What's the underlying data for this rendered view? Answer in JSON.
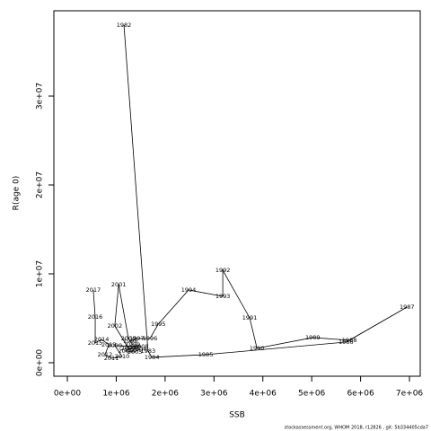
{
  "chart_data": {
    "type": "line",
    "xlabel": "SSB",
    "ylabel": "R(age 0)",
    "footnote": "stockassessment.org, WHOM 2018, r12826 , git: 5b334405cda7",
    "line_color": "#000000",
    "label_color": "#ff0000",
    "labels": [
      "1982",
      "1983",
      "1984",
      "1985",
      "1986",
      "1987",
      "1988",
      "1989",
      "1990",
      "1991",
      "1992",
      "1993",
      "1994",
      "1995",
      "1996",
      "1997",
      "1998",
      "1999",
      "2000",
      "2001",
      "2002",
      "2003",
      "2004",
      "2005",
      "2006",
      "2007",
      "2008",
      "2009",
      "2010",
      "2011",
      "2012",
      "2013",
      "2014",
      "2015",
      "2016",
      "2017"
    ],
    "x": [
      1158000,
      1650000,
      1730000,
      2830000,
      5700000,
      6950000,
      5770000,
      5020000,
      3880000,
      3730000,
      3180000,
      3180000,
      2480000,
      1860000,
      1690000,
      1420000,
      1290000,
      1340000,
      1250000,
      1050000,
      970000,
      1250000,
      1470000,
      1380000,
      1190000,
      1320000,
      1510000,
      970000,
      1120000,
      900000,
      770000,
      850000,
      700000,
      570000,
      570000,
      530000
    ],
    "values": [
      37980000,
      1310000,
      610000,
      910000,
      2320000,
      6260000,
      2530000,
      2830000,
      1620000,
      5050000,
      10400000,
      7470000,
      8180000,
      4340000,
      2730000,
      2730000,
      2420000,
      2020000,
      2730000,
      8790000,
      4140000,
      1620000,
      1520000,
      1210000,
      1310000,
      1720000,
      1820000,
      1920000,
      710000,
      510000,
      910000,
      2020000,
      2630000,
      2220000,
      5150000,
      8180000
    ],
    "xlim": [
      -276000,
      7220000
    ],
    "ylim": [
      -1520000,
      39600000
    ],
    "xticks": [
      {
        "value": 0,
        "label": "0e+00"
      },
      {
        "value": 1000000,
        "label": "1e+06"
      },
      {
        "value": 2000000,
        "label": "2e+06"
      },
      {
        "value": 3000000,
        "label": "3e+06"
      },
      {
        "value": 4000000,
        "label": "4e+06"
      },
      {
        "value": 5000000,
        "label": "5e+06"
      },
      {
        "value": 6000000,
        "label": "6e+06"
      },
      {
        "value": 7000000,
        "label": "7e+06"
      }
    ],
    "yticks": [
      {
        "value": 0,
        "label": "0e+00"
      },
      {
        "value": 10000000,
        "label": "1e+07"
      },
      {
        "value": 20000000,
        "label": "2e+07"
      },
      {
        "value": 30000000,
        "label": "3e+07"
      }
    ]
  }
}
